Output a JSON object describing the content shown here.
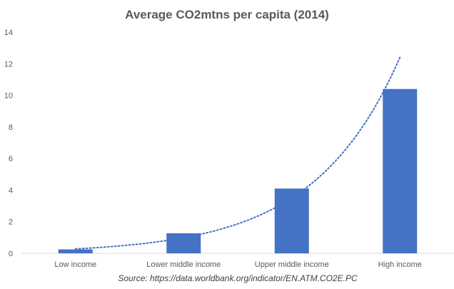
{
  "chart_data": {
    "type": "bar",
    "title": "Average CO2mtns per capita (2014)",
    "categories": [
      "Low income",
      "Lower middle income",
      "Upper middle income",
      "High income"
    ],
    "values": [
      0.25,
      1.27,
      4.1,
      10.4
    ],
    "ylim": [
      0,
      14
    ],
    "yticks": [
      0,
      2,
      4,
      6,
      8,
      10,
      12,
      14
    ],
    "grid": false,
    "trendline": {
      "type": "exponential",
      "style": "dotted",
      "values": [
        0.28,
        1.15,
        3.6,
        12.4
      ]
    },
    "source": "Source: https://data.worldbank.org/indicator/EN.ATM.CO2E.PC"
  },
  "colors": {
    "bar": "#4472c4",
    "trendline": "#4472c4",
    "axis": "#d9d9d9",
    "text": "#595959"
  }
}
